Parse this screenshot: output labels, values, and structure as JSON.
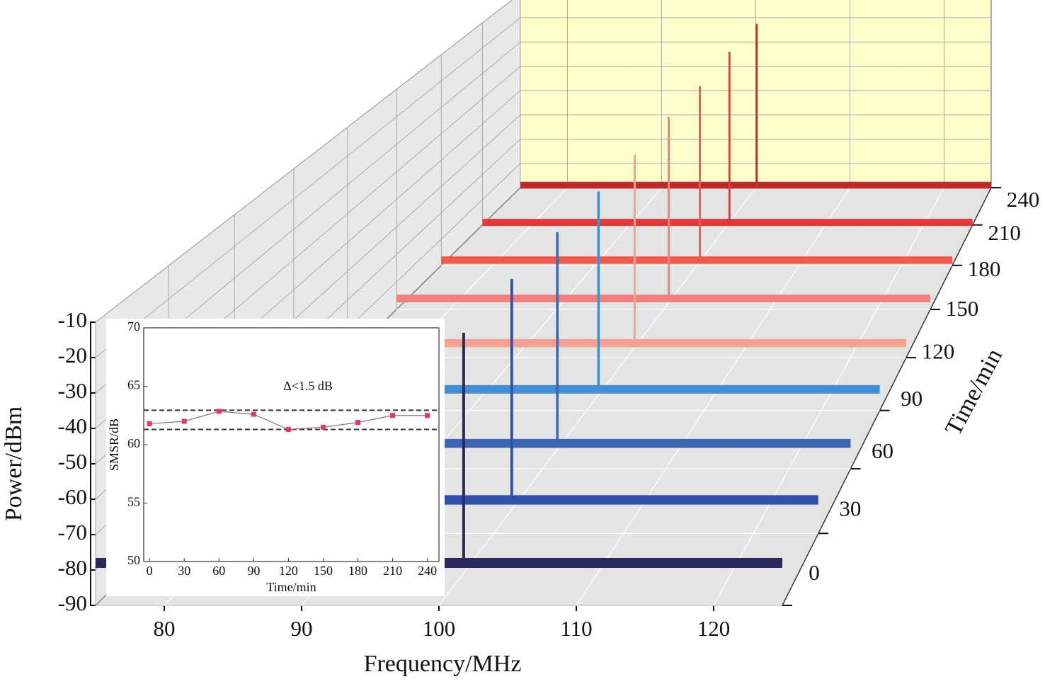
{
  "chart_data": [
    {
      "type": "waterfall3d",
      "xlabel": "Frequency/MHz",
      "ylabel": "Power/dBm",
      "zlabel": "Time/min",
      "xlim": [
        75,
        125
      ],
      "xticks": [
        80,
        90,
        100,
        110,
        120
      ],
      "ylim": [
        -90,
        -10
      ],
      "yticks": [
        -10,
        -20,
        -30,
        -40,
        -50,
        -60,
        -70,
        -80,
        -90
      ],
      "zlim": [
        0,
        240
      ],
      "zticks": [
        0,
        30,
        60,
        90,
        120,
        150,
        180,
        210,
        240
      ],
      "wall_color": "#ffffcc",
      "floor_color": "#e4e4e4",
      "grid": true,
      "series": [
        {
          "z": 0,
          "color": "#2b2a5c",
          "peak_x": 101.8,
          "peak_y": -13,
          "floor": -78
        },
        {
          "z": 30,
          "color": "#2f4fa8",
          "peak_x": 101.4,
          "peak_y": -14,
          "floor": -80
        },
        {
          "z": 60,
          "color": "#3d66b5",
          "peak_x": 101.2,
          "peak_y": -15.5,
          "floor": -82
        },
        {
          "z": 90,
          "color": "#3f8fd6",
          "peak_x": 101.0,
          "peak_y": -17.5,
          "floor": -83
        },
        {
          "z": 120,
          "color": "#f5a292",
          "peak_x": 100.7,
          "peak_y": -19.5,
          "floor": -85
        },
        {
          "z": 150,
          "color": "#f08080",
          "peak_x": 100.5,
          "peak_y": -20,
          "floor": -86
        },
        {
          "z": 180,
          "color": "#ef5a4a",
          "peak_x": 100.3,
          "peak_y": -22,
          "floor": -88
        },
        {
          "z": 210,
          "color": "#e8363a",
          "peak_x": 100.2,
          "peak_y": -21.5,
          "floor": -89
        },
        {
          "z": 240,
          "color": "#c0282e",
          "peak_x": 100.1,
          "peak_y": -22.5,
          "floor": -89
        }
      ]
    },
    {
      "type": "line",
      "xlabel": "Time/min",
      "ylabel": "SMSR/dB",
      "annotation": "Δ<1.5 dB",
      "x": [
        0,
        30,
        60,
        90,
        120,
        150,
        180,
        210,
        240
      ],
      "values": [
        61.8,
        62.0,
        62.85,
        62.6,
        61.3,
        61.5,
        61.9,
        62.5,
        62.5
      ],
      "color": "#e8336d",
      "line_color": "#8c6a8c",
      "reference_lines": [
        62.95,
        61.3
      ],
      "xlim": [
        -5,
        250
      ],
      "xticks": [
        0,
        30,
        60,
        90,
        120,
        150,
        180,
        210,
        240
      ],
      "ylim": [
        50,
        70
      ],
      "yticks": [
        50,
        55,
        60,
        65,
        70
      ]
    }
  ]
}
